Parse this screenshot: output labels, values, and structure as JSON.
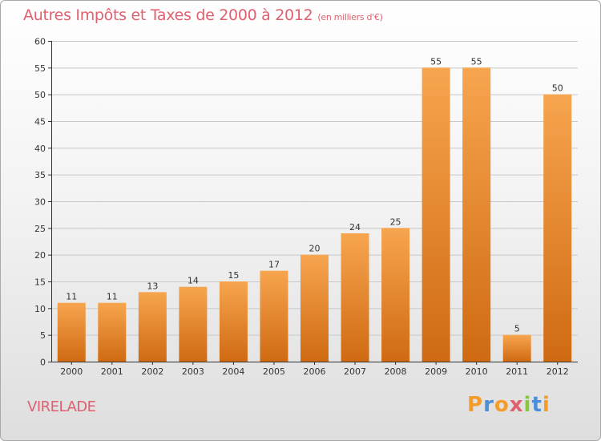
{
  "header": {
    "title": "Autres Impôts et Taxes de 2000 à 2012",
    "unit": "(en milliers d'€)"
  },
  "footer": {
    "place": "VIRELADE",
    "logo_text": "Proxiti"
  },
  "colors": {
    "title": "#e0606f",
    "bar_top": "#f7a54f",
    "bar_bottom": "#cf6a12",
    "grid": "#c8c8c8",
    "logo_letters": [
      "#f39c2a",
      "#4a8fd8",
      "#f39c2a",
      "#e0606f",
      "#8cc63f",
      "#4a8fd8",
      "#f39c2a"
    ]
  },
  "chart_data": {
    "type": "bar",
    "title": "Autres Impôts et Taxes de 2000 à 2012",
    "subtitle": "(en milliers d'€)",
    "xlabel": "",
    "ylabel": "",
    "categories": [
      "2000",
      "2001",
      "2002",
      "2003",
      "2004",
      "2005",
      "2006",
      "2007",
      "2008",
      "2009",
      "2010",
      "2011",
      "2012"
    ],
    "values": [
      11,
      11,
      13,
      14,
      15,
      17,
      20,
      24,
      25,
      55,
      55,
      5,
      50
    ],
    "ylim": [
      0,
      60
    ],
    "yticks": [
      0,
      5,
      10,
      15,
      20,
      25,
      30,
      35,
      40,
      45,
      50,
      55,
      60
    ],
    "grid": true,
    "data_labels": true
  }
}
